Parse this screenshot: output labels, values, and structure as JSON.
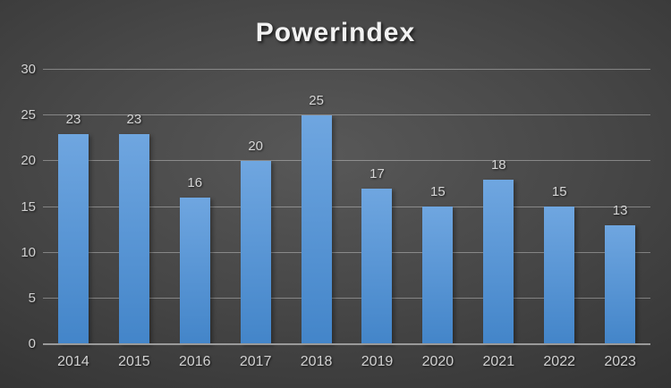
{
  "chart_data": {
    "type": "bar",
    "title": "Powerindex",
    "categories": [
      "2014",
      "2015",
      "2016",
      "2017",
      "2018",
      "2019",
      "2020",
      "2021",
      "2022",
      "2023"
    ],
    "values": [
      23,
      23,
      16,
      20,
      25,
      17,
      15,
      18,
      15,
      13
    ],
    "xlabel": "",
    "ylabel": "",
    "ylim": [
      0,
      30
    ],
    "yticks": [
      0,
      5,
      10,
      15,
      20,
      25,
      30
    ],
    "grid": "horizontal-only",
    "legend_position": "none",
    "data_labels_shown": true
  },
  "colors": {
    "background_center": "#585858",
    "background_edge": "#242424",
    "bar_top": "#6FA6E0",
    "bar_bottom": "#4385C9",
    "gridline": "rgba(255,255,255,0.34)",
    "axis_line": "#9a9a9a",
    "tick_label": "#d2d2d2",
    "data_label": "#d6d6d6",
    "title": "#f2f2f2"
  }
}
